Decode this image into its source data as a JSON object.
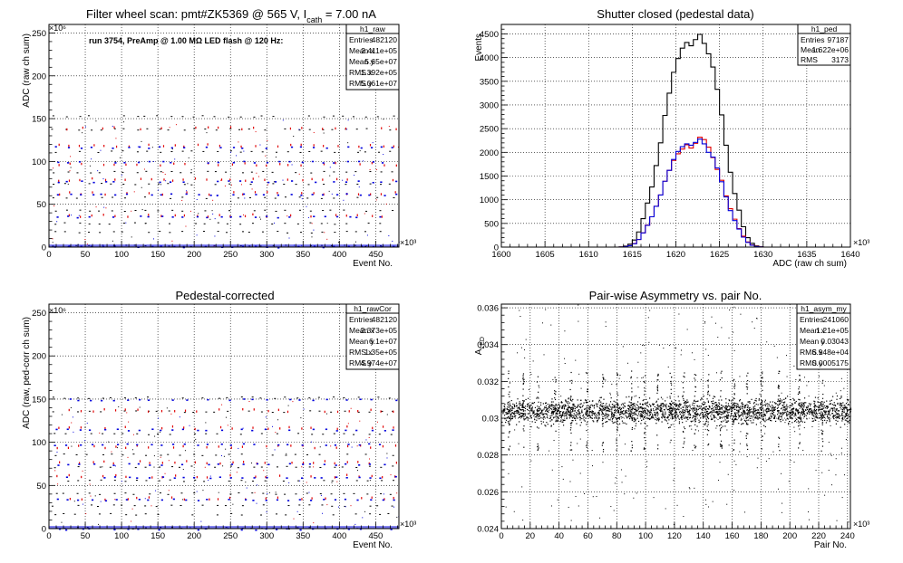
{
  "chart_data": [
    {
      "type": "scatter",
      "title_main": "Filter wheel scan: pmt#ZK5369 @   565 V, I",
      "title_sub": "cath",
      "title_tail": " = 7.00 nA",
      "annotation": "run 3754, PreAmp @ 1.00 MΩ LED flash @  120 Hz:",
      "xlabel": "Event No.",
      "ylabel": "ADC (raw ch sum)",
      "x_multiplier": "×10³",
      "y_multiplier": "×10⁶",
      "xlim": [
        0,
        482
      ],
      "ylim": [
        0,
        260
      ],
      "xticks": [
        0,
        50,
        100,
        150,
        200,
        250,
        300,
        350,
        400,
        450
      ],
      "yticks": [
        0,
        50,
        100,
        150,
        200,
        250
      ],
      "colors": {
        "black": "#000000",
        "red": "#e00000",
        "blue": "#0000dd"
      },
      "steps": {
        "period_x": 16,
        "levels": [
          2,
          22,
          40,
          63,
          80,
          100,
          122,
          144,
          153
        ],
        "black_y": [
          2,
          18,
          28,
          43,
          58,
          74,
          88,
          112,
          138,
          153
        ],
        "red_y": [
          38,
          64,
          80,
          98,
          120,
          140
        ],
        "blue_y": [
          1,
          36,
          62,
          77,
          100,
          117
        ]
      },
      "stats": {
        "name": "h1_raw",
        "rows": [
          {
            "label": "Entries",
            "value": "482120"
          },
          {
            "label": "Mean x",
            "value": "2.411e+05"
          },
          {
            "label": "Mean y",
            "value": "5.65e+07"
          },
          {
            "label": "RMS x",
            "value": "1.392e+05"
          },
          {
            "label": "RMS y",
            "value": "5.061e+07"
          }
        ]
      }
    },
    {
      "type": "histogram",
      "title": "Shutter closed (pedestal data)",
      "xlabel": "ADC (raw ch sum)",
      "ylabel": "Events",
      "x_multiplier": "×10³",
      "xlim": [
        1600,
        1640
      ],
      "ylim": [
        0,
        4700
      ],
      "xticks": [
        1600,
        1605,
        1610,
        1615,
        1620,
        1625,
        1630,
        1635,
        1640
      ],
      "yticks": [
        0,
        500,
        1000,
        1500,
        2000,
        2500,
        3000,
        3500,
        4000,
        4500
      ],
      "bin_width": 0.5,
      "bin_start": 1613,
      "series": [
        {
          "color": "#000000",
          "values": [
            0,
            5,
            20,
            60,
            150,
            320,
            600,
            930,
            1270,
            1720,
            2200,
            2780,
            3250,
            3690,
            3980,
            4200,
            4320,
            4250,
            4380,
            4490,
            4300,
            4080,
            3800,
            3330,
            2790,
            2150,
            1580,
            1130,
            780,
            430,
            200,
            80,
            25,
            6,
            0
          ]
        },
        {
          "color": "#e00000",
          "values": [
            0,
            2,
            10,
            30,
            75,
            160,
            300,
            465,
            640,
            860,
            1100,
            1390,
            1620,
            1830,
            1970,
            2070,
            2160,
            2090,
            2190,
            2320,
            2270,
            2110,
            1890,
            1640,
            1410,
            1080,
            810,
            590,
            390,
            230,
            110,
            45,
            15,
            4,
            0
          ]
        },
        {
          "color": "#0000dd",
          "values": [
            0,
            2,
            10,
            30,
            70,
            160,
            300,
            460,
            640,
            860,
            1100,
            1390,
            1620,
            1850,
            2020,
            2120,
            2180,
            2150,
            2210,
            2280,
            2180,
            2000,
            1900,
            1670,
            1380,
            1060,
            770,
            560,
            380,
            210,
            100,
            40,
            12,
            3,
            0
          ]
        }
      ],
      "stats": {
        "name": "h1_ped",
        "rows": [
          {
            "label": "Entries",
            "value": "97187"
          },
          {
            "label": "Mean",
            "value": "1.622e+06"
          },
          {
            "label": "RMS",
            "value": "3173"
          }
        ]
      }
    },
    {
      "type": "scatter",
      "title": "Pedestal-corrected",
      "xlabel": "Event No.",
      "ylabel": "ADC (raw, ped-corr ch sum)",
      "x_multiplier": "×10³",
      "y_multiplier": "×10⁶",
      "xlim": [
        0,
        482
      ],
      "ylim": [
        0,
        260
      ],
      "xticks": [
        0,
        50,
        100,
        150,
        200,
        250,
        300,
        350,
        400,
        450
      ],
      "yticks": [
        0,
        50,
        100,
        150,
        200,
        250
      ],
      "steps": {
        "period_x": 16,
        "black_y": [
          1,
          17,
          27,
          41,
          56,
          72,
          86,
          110,
          136,
          152
        ],
        "red_y": [
          36,
          62,
          78,
          96,
          118,
          138
        ],
        "blue_y": [
          0,
          34,
          60,
          75,
          98,
          115,
          150
        ]
      },
      "stats": {
        "name": "h1_rawCor",
        "rows": [
          {
            "label": "Entries",
            "value": "482120"
          },
          {
            "label": "Mean x",
            "value": "2.373e+05"
          },
          {
            "label": "Mean y",
            "value": "6.1e+07"
          },
          {
            "label": "RMS x",
            "value": "1.35e+05"
          },
          {
            "label": "RMS y",
            "value": "4.974e+07"
          }
        ]
      }
    },
    {
      "type": "scatter",
      "title": "Pair-wise Asymmetry vs. pair No.",
      "xlabel": "Pair No.",
      "ylabel": "A",
      "ylabel_sub": "LED",
      "x_multiplier": "×10³",
      "xlim": [
        0,
        242
      ],
      "ylim": [
        0.024,
        0.0362
      ],
      "xticks": [
        0,
        20,
        40,
        60,
        80,
        100,
        120,
        140,
        160,
        180,
        200,
        220,
        240
      ],
      "yticks": [
        0.024,
        0.026,
        0.028,
        0.03,
        0.032,
        0.034,
        0.036
      ],
      "ytick_labels": [
        "0.024",
        "0.026",
        "0.028",
        "0.03",
        "0.032",
        "0.034",
        "0.036"
      ],
      "band": {
        "center": 0.0304,
        "half_width": 0.0005
      },
      "spike_x": [
        5,
        15,
        25,
        37,
        48,
        59,
        70,
        80,
        90,
        99,
        108,
        117,
        126,
        134,
        143,
        152,
        161,
        170,
        180,
        192,
        206,
        222
      ],
      "stats": {
        "name": "h1_asym_my",
        "rows": [
          {
            "label": "Entries",
            "value": "241060"
          },
          {
            "label": "Mean x",
            "value": "1.21e+05"
          },
          {
            "label": "Mean y",
            "value": "0.03043"
          },
          {
            "label": "RMS x",
            "value": "6.948e+04"
          },
          {
            "label": "RMS y",
            "value": "0.0005175"
          }
        ]
      }
    }
  ]
}
